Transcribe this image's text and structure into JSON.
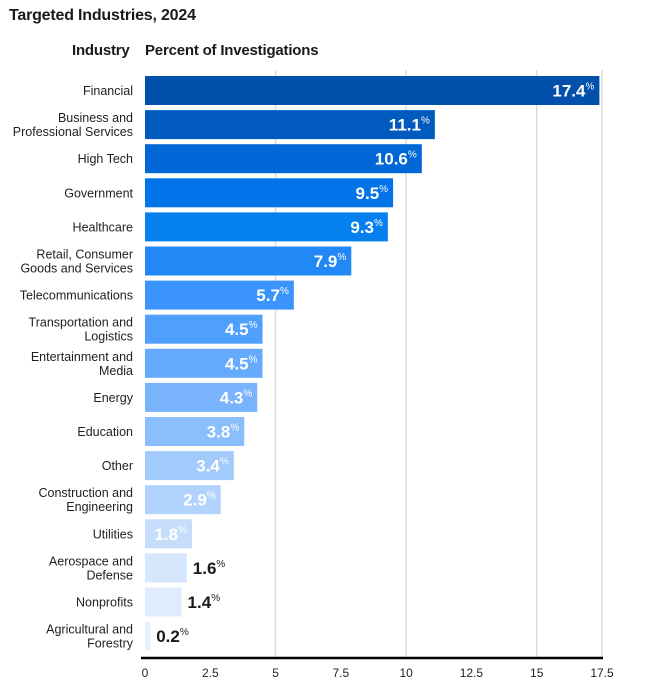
{
  "chart_data": {
    "type": "bar",
    "orientation": "horizontal",
    "title": "Targeted Industries, 2024",
    "category_header": "Industry",
    "xlabel": "Percent of Investigations",
    "ylabel": "Industry",
    "xlim": [
      0,
      17.5
    ],
    "xticks": [
      0,
      2.5,
      5,
      7.5,
      10,
      12.5,
      15,
      17.5
    ],
    "xtick_labels": [
      "0",
      "2.5",
      "5",
      "7.5",
      "10",
      "12.5",
      "15",
      "17.5"
    ],
    "gridlines": [
      5,
      10,
      15,
      17.5
    ],
    "grid": true,
    "value_suffix": "%",
    "categories": [
      [
        "Financial"
      ],
      [
        "Business and",
        "Professional Services"
      ],
      [
        "High Tech"
      ],
      [
        "Government"
      ],
      [
        "Healthcare"
      ],
      [
        "Retail, Consumer",
        "Goods and Services"
      ],
      [
        "Telecommunications"
      ],
      [
        "Transportation and",
        "Logistics"
      ],
      [
        "Entertainment and",
        "Media"
      ],
      [
        "Energy"
      ],
      [
        "Education"
      ],
      [
        "Other"
      ],
      [
        "Construction and",
        "Engineering"
      ],
      [
        "Utilities"
      ],
      [
        "Aerospace and",
        "Defense"
      ],
      [
        "Nonprofits"
      ],
      [
        "Agricultural and",
        "Forestry"
      ]
    ],
    "values": [
      17.4,
      11.1,
      10.6,
      9.5,
      9.3,
      7.9,
      5.7,
      4.5,
      4.5,
      4.3,
      3.8,
      3.4,
      2.9,
      1.8,
      1.6,
      1.4,
      0.2
    ],
    "value_labels": [
      "17.4",
      "11.1",
      "10.6",
      "9.5",
      "9.3",
      "7.9",
      "5.7",
      "4.5",
      "4.5",
      "4.3",
      "3.8",
      "3.4",
      "2.9",
      "1.8",
      "1.6",
      "1.4",
      "0.2"
    ],
    "colors": [
      "#0150a9",
      "#015bbf",
      "#0166d6",
      "#0273e8",
      "#067fef",
      "#2288f5",
      "#3a94fb",
      "#4f9ffd",
      "#66aafd",
      "#78b3fc",
      "#8bbefc",
      "#a2cafc",
      "#b2d3fd",
      "#c6defc",
      "#d6e7fd",
      "#e0ecfd",
      "#e6effc"
    ],
    "label_inside": [
      true,
      true,
      true,
      true,
      true,
      true,
      true,
      true,
      true,
      true,
      true,
      true,
      true,
      true,
      false,
      false,
      false
    ],
    "label_inside_color": "#ffffff",
    "label_outside_color": "#1a1a1a",
    "gridline_color": "#dcdcdc",
    "axis_color": "#000000"
  }
}
